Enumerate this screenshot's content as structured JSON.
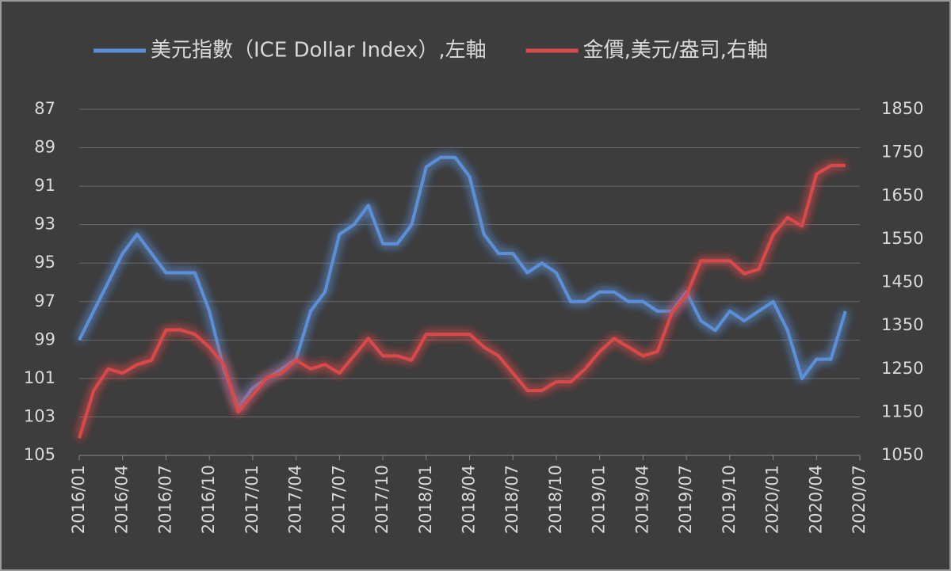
{
  "chart_data": {
    "type": "line",
    "x": [
      "2016/01",
      "2016/02",
      "2016/03",
      "2016/04",
      "2016/05",
      "2016/06",
      "2016/07",
      "2016/08",
      "2016/09",
      "2016/10",
      "2016/11",
      "2016/12",
      "2017/01",
      "2017/02",
      "2017/03",
      "2017/04",
      "2017/05",
      "2017/06",
      "2017/07",
      "2017/08",
      "2017/09",
      "2017/10",
      "2017/11",
      "2017/12",
      "2018/01",
      "2018/02",
      "2018/03",
      "2018/04",
      "2018/05",
      "2018/06",
      "2018/07",
      "2018/08",
      "2018/09",
      "2018/10",
      "2018/11",
      "2018/12",
      "2019/01",
      "2019/02",
      "2019/03",
      "2019/04",
      "2019/05",
      "2019/06",
      "2019/07",
      "2019/08",
      "2019/09",
      "2019/10",
      "2019/11",
      "2019/12",
      "2020/01",
      "2020/02",
      "2020/03",
      "2020/04",
      "2020/05",
      "2020/06"
    ],
    "xlim": [
      "2016/01",
      "2020/07"
    ],
    "xticks": [
      "2016/01",
      "2016/04",
      "2016/07",
      "2016/10",
      "2017/01",
      "2017/04",
      "2017/07",
      "2017/10",
      "2018/01",
      "2018/04",
      "2018/07",
      "2018/10",
      "2019/01",
      "2019/04",
      "2019/07",
      "2019/10",
      "2020/01",
      "2020/04",
      "2020/07"
    ],
    "ylim": [
      105,
      87
    ],
    "yticks": [
      87,
      89,
      91,
      93,
      95,
      97,
      99,
      101,
      103,
      105
    ],
    "y2lim": [
      1050,
      1850
    ],
    "y2ticks": [
      1850,
      1750,
      1650,
      1550,
      1450,
      1350,
      1250,
      1150,
      1050
    ],
    "grid": true,
    "legend": "top",
    "series": [
      {
        "name": "美元指數（ICE Dollar Index）,左軸",
        "color": "#5b8fd6",
        "values": [
          99,
          97.5,
          96,
          94.5,
          93.5,
          94.5,
          95.5,
          95.5,
          95.5,
          97.5,
          100.5,
          102.5,
          101.5,
          101,
          100.5,
          100,
          97.5,
          96.5,
          93.5,
          93,
          92,
          94,
          94,
          93,
          90,
          89.5,
          89.5,
          90.5,
          93.5,
          94.5,
          94.5,
          95.5,
          95,
          95.5,
          97,
          97,
          96.5,
          96.5,
          97,
          97,
          97.5,
          97.5,
          96.5,
          98,
          98.5,
          97.5,
          98,
          97.5,
          97,
          98.5,
          101,
          100,
          100,
          97.5
        ]
      },
      {
        "name": "金價,美元/盎司,右軸",
        "color": "#d94a4a",
        "axis": "y2",
        "values": [
          1090,
          1200,
          1250,
          1240,
          1260,
          1270,
          1340,
          1340,
          1330,
          1300,
          1260,
          1150,
          1190,
          1230,
          1240,
          1270,
          1250,
          1260,
          1240,
          1280,
          1320,
          1280,
          1280,
          1270,
          1330,
          1330,
          1330,
          1330,
          1300,
          1280,
          1240,
          1200,
          1200,
          1220,
          1220,
          1250,
          1290,
          1320,
          1300,
          1280,
          1290,
          1380,
          1420,
          1500,
          1500,
          1500,
          1470,
          1480,
          1560,
          1600,
          1580,
          1700,
          1720,
          1720
        ]
      }
    ]
  }
}
